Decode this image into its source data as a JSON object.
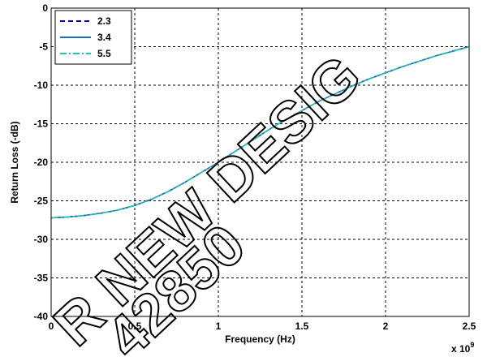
{
  "chart_data": {
    "type": "line",
    "title": "",
    "xlabel": "Frequency (Hz)",
    "ylabel": "Return Loss (-dB)",
    "x_multiplier_label": "x 10",
    "x_multiplier_exponent": "9",
    "xlim": [
      0,
      2.5
    ],
    "ylim": [
      -40,
      0
    ],
    "xticks": [
      "0",
      "0.5",
      "1",
      "1.5",
      "2",
      "2.5"
    ],
    "yticks": [
      "0",
      "-5",
      "-10",
      "-15",
      "-20",
      "-25",
      "-30",
      "-35",
      "-40"
    ],
    "grid": true,
    "legend_position": "top-left",
    "x": [
      0,
      0.1,
      0.2,
      0.3,
      0.4,
      0.5,
      0.6,
      0.7,
      0.8,
      0.9,
      1.0,
      1.1,
      1.2,
      1.3,
      1.4,
      1.5,
      1.6,
      1.7,
      1.8,
      1.9,
      2.0,
      2.1,
      2.2,
      2.3,
      2.4,
      2.5
    ],
    "series": [
      {
        "name": "2.3",
        "color": "#0000cc",
        "dash": "dashed",
        "values": [
          -27.2,
          -27.1,
          -26.9,
          -26.6,
          -26.2,
          -25.6,
          -24.8,
          -23.8,
          -22.6,
          -21.3,
          -20.0,
          -18.6,
          -17.2,
          -15.8,
          -14.5,
          -13.3,
          -12.1,
          -11.1,
          -10.1,
          -9.2,
          -8.4,
          -7.6,
          -6.9,
          -6.2,
          -5.6,
          -5.0
        ]
      },
      {
        "name": "3.4",
        "color": "#1f6fb4",
        "dash": "solid",
        "values": [
          -27.2,
          -27.1,
          -26.9,
          -26.6,
          -26.2,
          -25.6,
          -24.8,
          -23.8,
          -22.6,
          -21.3,
          -20.0,
          -18.6,
          -17.2,
          -15.8,
          -14.5,
          -13.3,
          -12.1,
          -11.1,
          -10.1,
          -9.2,
          -8.4,
          -7.6,
          -6.9,
          -6.2,
          -5.6,
          -5.0
        ]
      },
      {
        "name": "5.5",
        "color": "#20c8a8",
        "dash": "dashdot",
        "values": [
          -27.2,
          -27.1,
          -26.9,
          -26.6,
          -26.2,
          -25.6,
          -24.8,
          -23.8,
          -22.6,
          -21.3,
          -20.0,
          -18.6,
          -17.2,
          -15.8,
          -14.5,
          -13.3,
          -12.1,
          -11.1,
          -10.1,
          -9.2,
          -8.4,
          -7.6,
          -6.9,
          -6.2,
          -5.6,
          -5.0
        ]
      }
    ]
  },
  "watermark": {
    "line1": "R NEW DESIG",
    "line2": "42850"
  }
}
